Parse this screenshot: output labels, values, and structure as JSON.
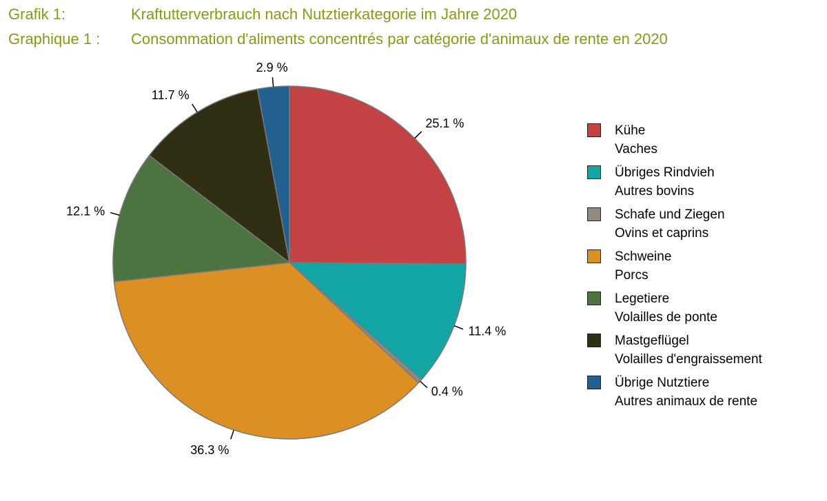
{
  "header": {
    "de_label": "Grafik 1:",
    "de_title": "Kraftutterverbrauch nach Nutztierkategorie im Jahre 2020",
    "fr_label": "Graphique 1 :",
    "fr_title": "Consommation d'aliments concentrés par catégorie d'animaux de rente en 2020",
    "color": "#8a9a12"
  },
  "chart_data": {
    "type": "pie",
    "title": "",
    "legend_position": "right",
    "slice_order": "clockwise from 12 o'clock",
    "slices": [
      {
        "name_de": "Kühe",
        "name_fr": "Vaches",
        "value": 25.1,
        "label": "25.1 %",
        "color": "#c44244"
      },
      {
        "name_de": "Übriges Rindvieh",
        "name_fr": "Autres bovins",
        "value": 11.4,
        "label": "11.4 %",
        "color": "#12a5a3"
      },
      {
        "name_de": "Schafe und Ziegen",
        "name_fr": "Ovins et caprins",
        "value": 0.4,
        "label": "0.4 %",
        "color": "#8f8a87"
      },
      {
        "name_de": "Schweine",
        "name_fr": "Porcs",
        "value": 36.3,
        "label": "36.3 %",
        "color": "#dc8f22"
      },
      {
        "name_de": "Legetiere",
        "name_fr": "Volailles de ponte",
        "value": 12.1,
        "label": "12.1 %",
        "color": "#4d7341"
      },
      {
        "name_de": "Mastgeflügel",
        "name_fr": "Volailles d'engraissement",
        "value": 11.7,
        "label": "11.7 %",
        "color": "#302f13"
      },
      {
        "name_de": "Übrige Nutztiere",
        "name_fr": "Autres animaux de rente",
        "value": 2.9,
        "label": "2.9 %",
        "color": "#23608f"
      }
    ]
  }
}
